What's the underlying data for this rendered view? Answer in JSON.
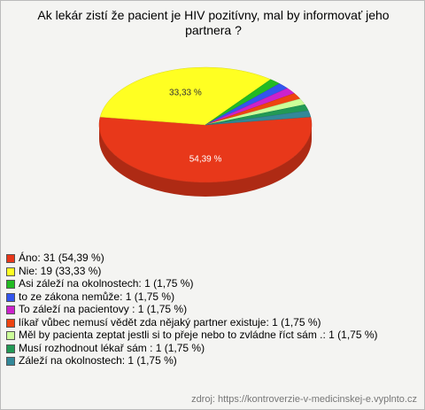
{
  "chart_data": {
    "type": "pie",
    "title": "Ak lekár zistí že pacient je HIV pozitívny, mal by informovať jeho partnera ?",
    "categories": [
      "Áno: 31 (54,39 %)",
      "Nie: 19 (33,33 %)",
      "Asi záleží na okolnostech: 1 (1,75 %)",
      "to ze zákona nemůže: 1 (1,75 %)",
      "To záleží na pacientovy : 1 (1,75 %)",
      "líkař vůbec nemusí vědět  zda nějaký partner existuje: 1 (1,75 %)",
      "Měl by pacienta zeptat jestli si to přeje nebo to zvládne říct sám .: 1 (1,75 %)",
      "Musí rozhodnout lékař sám : 1 (1,75 %)",
      "Záleží  na okolnostech: 1 (1,75 %)"
    ],
    "values": [
      54.39,
      33.33,
      1.75,
      1.75,
      1.75,
      1.75,
      1.75,
      1.75,
      1.75
    ],
    "value_labels": [
      "54,39 %",
      "33,33 %",
      null,
      null,
      null,
      null,
      null,
      null,
      null
    ],
    "colors": [
      "#e8381a",
      "#ffff22",
      "#22bb22",
      "#3355ee",
      "#cc22cc",
      "#ee4411",
      "#ccff99",
      "#229955",
      "#338899"
    ],
    "source": "zdroj: https://kontroverzie-v-medicinskej-e.vyplnto.cz"
  }
}
